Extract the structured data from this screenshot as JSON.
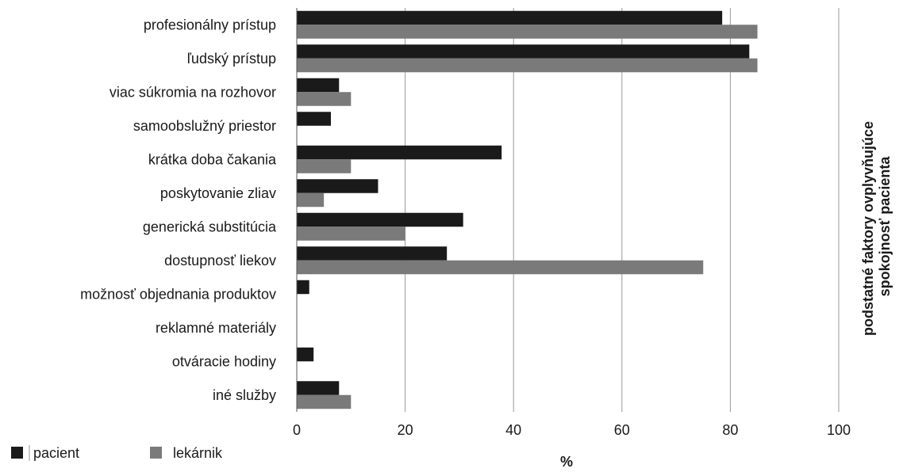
{
  "chart_data": {
    "type": "bar",
    "orientation": "horizontal",
    "categories": [
      "profesionálny prístup",
      "ľudský prístup",
      "viac súkromia na rozhovor",
      "samoobslužný priestor",
      "krátka doba čakania",
      "poskytovanie zliav",
      "generická substitúcia",
      "dostupnosť liekov",
      "možnosť objednania produktov",
      "reklamné materiály",
      "otváracie hodiny",
      "iné služby"
    ],
    "series": [
      {
        "name": "pacient",
        "color": "#1a1a1a",
        "values": [
          78.5,
          83.5,
          7.8,
          6.3,
          37.8,
          15,
          30.7,
          27.7,
          2.3,
          0,
          3.1,
          7.8
        ]
      },
      {
        "name": "lekárnik",
        "color": "#7a7a7a",
        "values": [
          85,
          85,
          10,
          0,
          10,
          5,
          20,
          75,
          0,
          0,
          0,
          10
        ]
      }
    ],
    "xlabel": "%",
    "ylabel": "podstatné faktory ovplyvňujúce spokojnosť pacienta",
    "ylabel_lines": [
      "podstatné faktory ovplyvňujúce",
      "spokojnosť pacienta"
    ],
    "xlim": [
      0,
      100
    ],
    "xticks": [
      0,
      20,
      40,
      60,
      80,
      100
    ],
    "grid": true,
    "legend_position": "bottom-left"
  }
}
